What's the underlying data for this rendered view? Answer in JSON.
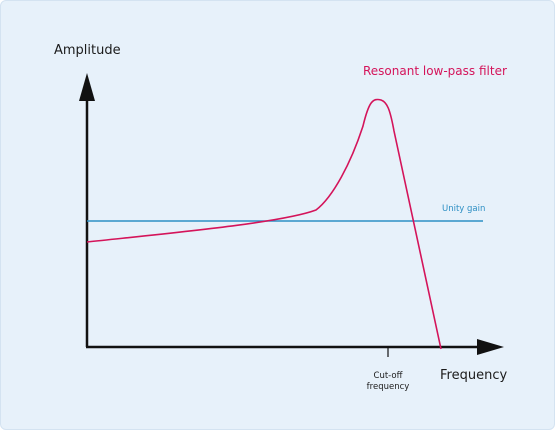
{
  "diagram": {
    "y_axis_label": "Amplitude",
    "x_axis_label": "Frequency",
    "cutoff_label_line1": "Cut-off",
    "cutoff_label_line2": "frequency",
    "reference_line_label": "Unity gain",
    "curve_label": "Resonant low-pass filter"
  },
  "colors": {
    "background": "#e7f1fa",
    "axis": "#111111",
    "unity_line": "#2d8fc4",
    "filter_curve": "#d4145a"
  }
}
